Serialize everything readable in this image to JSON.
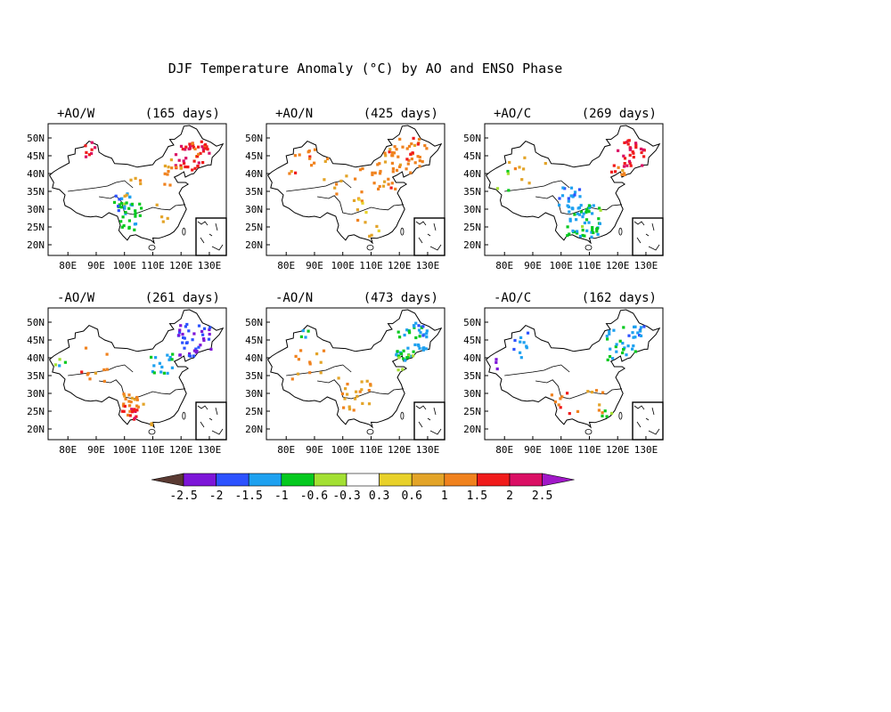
{
  "title": "DJF Temperature Anomaly (°C) by AO and ENSO Phase",
  "lat_labels": [
    "50N",
    "45N",
    "40N",
    "35N",
    "30N",
    "25N",
    "20N"
  ],
  "lon_labels": [
    "80E",
    "90E",
    "100E",
    "110E",
    "120E",
    "130E"
  ],
  "panels": [
    {
      "phase": "+AO/W",
      "days": "(165 days)",
      "hotspots": [
        {
          "lon": 124,
          "lat": 44,
          "r": 6,
          "v": 1.9,
          "n": 34
        },
        {
          "lon": 127,
          "lat": 48,
          "r": 4,
          "v": 1.6,
          "n": 12
        },
        {
          "lon": 118,
          "lat": 40,
          "r": 5,
          "v": 1.1,
          "n": 12
        },
        {
          "lon": 101,
          "lat": 28,
          "r": 5,
          "v": -0.9,
          "n": 30
        },
        {
          "lon": 99,
          "lat": 32,
          "r": 3,
          "v": -1.5,
          "n": 10
        },
        {
          "lon": 89,
          "lat": 47,
          "r": 3,
          "v": 1.9,
          "n": 8
        },
        {
          "lon": 104,
          "lat": 36,
          "r": 4,
          "v": 1.0,
          "n": 6
        },
        {
          "lon": 116,
          "lat": 28,
          "r": 5,
          "v": 1.0,
          "n": 4
        }
      ]
    },
    {
      "phase": "+AO/N",
      "days": "(425 days)",
      "hotspots": [
        {
          "lon": 118,
          "lat": 42,
          "r": 8,
          "v": 1.2,
          "n": 45
        },
        {
          "lon": 125,
          "lat": 46,
          "r": 5,
          "v": 1.3,
          "n": 18
        },
        {
          "lon": 100,
          "lat": 38,
          "r": 8,
          "v": 1.0,
          "n": 15
        },
        {
          "lon": 86,
          "lat": 44,
          "r": 5,
          "v": 1.2,
          "n": 12
        },
        {
          "lon": 108,
          "lat": 30,
          "r": 5,
          "v": 0.8,
          "n": 6
        },
        {
          "lon": 112,
          "lat": 24,
          "r": 4,
          "v": 0.7,
          "n": 4
        }
      ]
    },
    {
      "phase": "+AO/C",
      "days": "(269 days)",
      "hotspots": [
        {
          "lon": 108,
          "lat": 27,
          "r": 6,
          "v": -0.9,
          "n": 55
        },
        {
          "lon": 103,
          "lat": 33,
          "r": 4,
          "v": -1.4,
          "n": 20
        },
        {
          "lon": 125,
          "lat": 46,
          "r": 5,
          "v": 1.9,
          "n": 30
        },
        {
          "lon": 120,
          "lat": 40,
          "r": 3,
          "v": 1.2,
          "n": 8
        },
        {
          "lon": 88,
          "lat": 42,
          "r": 7,
          "v": 1.0,
          "n": 8
        },
        {
          "lon": 78,
          "lat": 38,
          "r": 4,
          "v": -0.7,
          "n": 4
        }
      ]
    },
    {
      "phase": "-AO/W",
      "days": "(261 days)",
      "hotspots": [
        {
          "lon": 125,
          "lat": 45,
          "r": 6,
          "v": -1.9,
          "n": 40
        },
        {
          "lon": 113,
          "lat": 38,
          "r": 4,
          "v": -1.1,
          "n": 16
        },
        {
          "lon": 103,
          "lat": 29,
          "r": 4,
          "v": 1.1,
          "n": 16
        },
        {
          "lon": 102,
          "lat": 24,
          "r": 3,
          "v": 1.8,
          "n": 15
        },
        {
          "lon": 90,
          "lat": 38,
          "r": 6,
          "v": 1.2,
          "n": 10
        },
        {
          "lon": 78,
          "lat": 38,
          "r": 3,
          "v": -0.7,
          "n": 4
        },
        {
          "lon": 110,
          "lat": 20,
          "r": 2,
          "v": 1.2,
          "n": 3
        }
      ]
    },
    {
      "phase": "-AO/N",
      "days": "(473 days)",
      "hotspots": [
        {
          "lon": 124,
          "lat": 44,
          "r": 6,
          "v": -1.0,
          "n": 40
        },
        {
          "lon": 122,
          "lat": 39,
          "r": 3,
          "v": -0.7,
          "n": 10
        },
        {
          "lon": 128,
          "lat": 48,
          "r": 3,
          "v": -1.5,
          "n": 6
        },
        {
          "lon": 104,
          "lat": 30,
          "r": 6,
          "v": 1.0,
          "n": 22
        },
        {
          "lon": 88,
          "lat": 38,
          "r": 6,
          "v": 1.0,
          "n": 12
        },
        {
          "lon": 87,
          "lat": 46,
          "r": 3,
          "v": -1.2,
          "n": 4
        }
      ]
    },
    {
      "phase": "-AO/C",
      "days": "(162 days)",
      "hotspots": [
        {
          "lon": 122,
          "lat": 44,
          "r": 6,
          "v": -1.1,
          "n": 30
        },
        {
          "lon": 127,
          "lat": 48,
          "r": 3,
          "v": -1.5,
          "n": 8
        },
        {
          "lon": 85,
          "lat": 44,
          "r": 5,
          "v": -1.3,
          "n": 10
        },
        {
          "lon": 100,
          "lat": 27,
          "r": 4,
          "v": 1.4,
          "n": 8
        },
        {
          "lon": 110,
          "lat": 28,
          "r": 5,
          "v": 1.1,
          "n": 8
        },
        {
          "lon": 117,
          "lat": 23,
          "r": 3,
          "v": -0.7,
          "n": 4
        },
        {
          "lon": 76,
          "lat": 38,
          "r": 2,
          "v": -2.2,
          "n": 3
        }
      ]
    }
  ],
  "colorbar": {
    "labels": [
      "-2.5",
      "-2",
      "-1.5",
      "-1",
      "-0.6",
      "-0.3",
      "0.3",
      "0.6",
      "1",
      "1.5",
      "2",
      "2.5"
    ],
    "colors": [
      "#5a3a32",
      "#7d16d8",
      "#2c52ff",
      "#1ea1f0",
      "#05c91f",
      "#a3e033",
      "#ffffff",
      "#e8d12a",
      "#e3a428",
      "#f0821e",
      "#f01b1b",
      "#da0f64",
      "#a118c8"
    ]
  },
  "map": {
    "lon_range": [
      73,
      136
    ],
    "lat_range": [
      17,
      54
    ]
  }
}
